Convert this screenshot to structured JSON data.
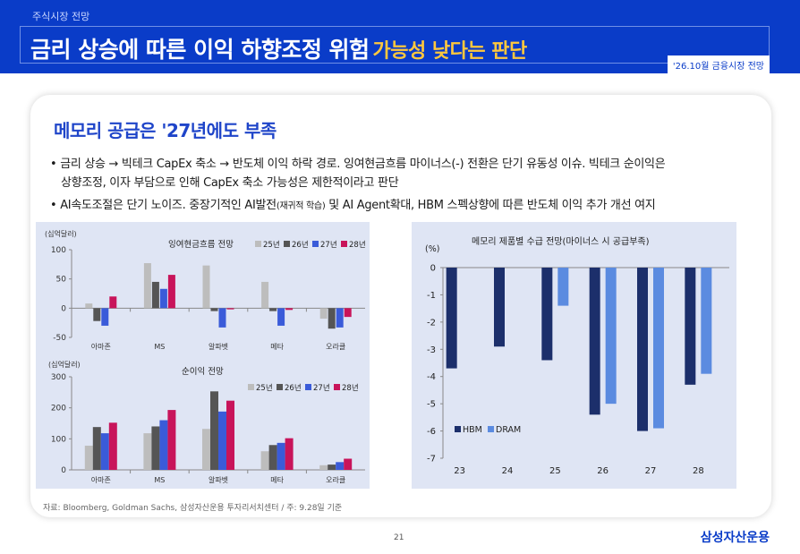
{
  "header": {
    "category": "주식시장 전망",
    "title_main": "금리 상승에 따른 이익 하향조정 위험",
    "title_highlight": "가능성 낮다는 판단",
    "tag": "'26.10월 금융시장 전망"
  },
  "section_title": "메모리 공급은 '27년에도 부족",
  "bullets": [
    {
      "line1": "• 금리 상승 → 빅테크 CapEx 축소 → 반도체 이익 하락 경로. 잉여현금흐름 마이너스(-) 전환은 단기 유동성 이슈. 빅테크 순이익은",
      "line2": "상향조정, 이자 부담으로 인해 CapEx 축소 가능성은 제한적이라고 판단"
    },
    {
      "pre": "• AI속도조절은 단기 노이즈. 중장기적인 AI발전",
      "small": "(재귀적 학습)",
      "post": " 및 AI Agent확대, HBM 스펙상향에 따른 반도체 이익 추가 개선 여지"
    }
  ],
  "colors": {
    "s25": "#bdbdbd",
    "s26": "#555555",
    "s27": "#3a5bd9",
    "s28": "#c8145a",
    "hbm": "#1c2f6b",
    "dram": "#5b8be0",
    "brand": "#0a3cc8"
  },
  "chart_data": [
    {
      "type": "bar",
      "title": "잉여현금흐름 전망",
      "ylabel": "(십억달러)",
      "categories": [
        "아마존",
        "MS",
        "알파벳",
        "메타",
        "오라클"
      ],
      "ylim": [
        -50,
        100
      ],
      "yticks": [
        -50,
        0,
        50,
        100
      ],
      "series": [
        {
          "name": "25년",
          "values": [
            8,
            77,
            73,
            45,
            -18
          ]
        },
        {
          "name": "26년",
          "values": [
            -22,
            45,
            -5,
            -5,
            -35
          ]
        },
        {
          "name": "27년",
          "values": [
            -30,
            33,
            -33,
            -30,
            -33
          ]
        },
        {
          "name": "28년",
          "values": [
            20,
            57,
            -2,
            -3,
            -15
          ]
        }
      ],
      "legend": "top-right"
    },
    {
      "type": "bar",
      "title": "순이익 전망",
      "ylabel": "(십억달러)",
      "categories": [
        "아마존",
        "MS",
        "알파벳",
        "메타",
        "오라클"
      ],
      "ylim": [
        0,
        300
      ],
      "yticks": [
        0,
        100,
        200,
        300
      ],
      "series": [
        {
          "name": "25년",
          "values": [
            78,
            118,
            132,
            60,
            15
          ]
        },
        {
          "name": "26년",
          "values": [
            138,
            140,
            253,
            80,
            17
          ]
        },
        {
          "name": "27년",
          "values": [
            118,
            160,
            188,
            87,
            25
          ]
        },
        {
          "name": "28년",
          "values": [
            152,
            193,
            223,
            102,
            36
          ]
        }
      ],
      "legend": "top-right"
    },
    {
      "type": "bar",
      "title": "메모리 제품별 수급 전망(마이너스 시 공급부족)",
      "ylabel": "(%)",
      "categories": [
        "23",
        "24",
        "25",
        "26",
        "27",
        "28"
      ],
      "ylim": [
        -7,
        0
      ],
      "yticks": [
        0,
        -1,
        -2,
        -3,
        -4,
        -5,
        -6,
        -7
      ],
      "series": [
        {
          "name": "HBM",
          "values": [
            -3.7,
            -2.9,
            -3.4,
            -5.4,
            -6.0,
            -4.3
          ]
        },
        {
          "name": "DRAM",
          "values": [
            null,
            null,
            -1.4,
            -5.0,
            -5.9,
            -3.9
          ]
        }
      ],
      "legend": "bottom-left"
    }
  ],
  "source": "자료: Bloomberg, Goldman Sachs, 삼성자산운용 투자리서치센터 / 주: 9.28일 기준",
  "page_number": "21",
  "logo": "삼성자산운용"
}
